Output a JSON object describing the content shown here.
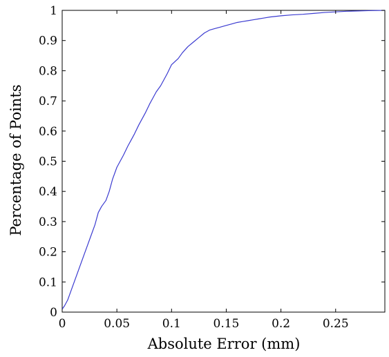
{
  "chart_data": {
    "type": "line",
    "title": "",
    "xlabel": "Absolute Error (mm)",
    "ylabel": "Percentage of Points",
    "xlim": [
      0,
      0.295
    ],
    "ylim": [
      0,
      1
    ],
    "xticks": [
      0,
      0.05,
      0.1,
      0.15,
      0.2,
      0.25
    ],
    "xtick_labels": [
      "0",
      "0.05",
      "0.1",
      "0.15",
      "0.2",
      "0.25"
    ],
    "yticks": [
      0,
      0.1,
      0.2,
      0.3,
      0.4,
      0.5,
      0.6,
      0.7,
      0.8,
      0.9,
      1
    ],
    "ytick_labels": [
      "0",
      "0.1",
      "0.2",
      "0.3",
      "0.4",
      "0.5",
      "0.6",
      "0.7",
      "0.8",
      "0.9",
      "1"
    ],
    "grid": false,
    "legend": "none",
    "colors": {
      "line": "#3a3ad0",
      "axes": "#000000"
    },
    "series": [
      {
        "x": [
          0,
          0.002,
          0.005,
          0.008,
          0.01,
          0.015,
          0.02,
          0.025,
          0.03,
          0.033,
          0.036,
          0.04,
          0.043,
          0.046,
          0.05,
          0.053,
          0.056,
          0.06,
          0.063,
          0.066,
          0.07,
          0.073,
          0.076,
          0.08,
          0.083,
          0.086,
          0.09,
          0.093,
          0.096,
          0.1,
          0.103,
          0.106,
          0.11,
          0.115,
          0.12,
          0.125,
          0.13,
          0.135,
          0.14,
          0.145,
          0.15,
          0.155,
          0.16,
          0.165,
          0.17,
          0.175,
          0.18,
          0.185,
          0.19,
          0.2,
          0.21,
          0.22,
          0.23,
          0.24,
          0.25,
          0.26,
          0.27,
          0.28,
          0.295
        ],
        "y": [
          0.01,
          0.02,
          0.04,
          0.07,
          0.09,
          0.14,
          0.19,
          0.24,
          0.29,
          0.33,
          0.35,
          0.37,
          0.4,
          0.44,
          0.48,
          0.5,
          0.52,
          0.55,
          0.57,
          0.59,
          0.62,
          0.64,
          0.66,
          0.69,
          0.71,
          0.73,
          0.75,
          0.77,
          0.79,
          0.82,
          0.83,
          0.84,
          0.86,
          0.88,
          0.895,
          0.91,
          0.925,
          0.935,
          0.94,
          0.945,
          0.95,
          0.955,
          0.96,
          0.963,
          0.966,
          0.969,
          0.972,
          0.975,
          0.978,
          0.982,
          0.985,
          0.987,
          0.99,
          0.993,
          0.995,
          0.997,
          0.998,
          0.999,
          1.0
        ]
      }
    ]
  }
}
